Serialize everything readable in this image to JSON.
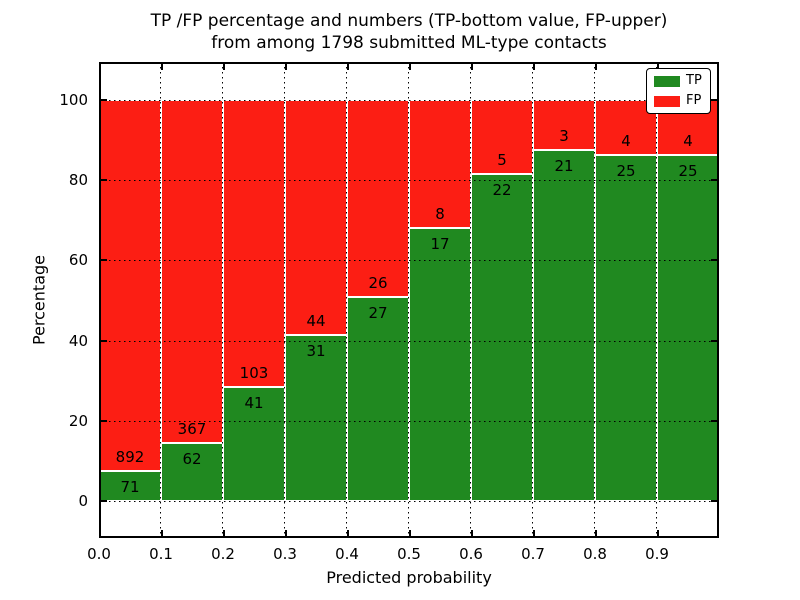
{
  "title": {
    "line1": "TP /FP percentage and numbers (TP-bottom value, FP-upper)",
    "line2": "from among 1798 submitted ML-type contacts"
  },
  "axes": {
    "xlabel": "Predicted probability",
    "ylabel": "Percentage",
    "xtick_labels": [
      "0.0",
      "0.1",
      "0.2",
      "0.3",
      "0.4",
      "0.5",
      "0.6",
      "0.7",
      "0.8",
      "0.9"
    ],
    "ytick_labels": [
      "0",
      "20",
      "40",
      "60",
      "80",
      "100"
    ]
  },
  "legend": {
    "position": "upper-right",
    "entries": [
      {
        "label": "TP",
        "color": "#208920"
      },
      {
        "label": "FP",
        "color": "#fc1e14"
      }
    ]
  },
  "colors": {
    "tp_green": "#208920",
    "fp_red": "#fc1e14",
    "grid": "#000000",
    "background": "#ffffff"
  },
  "chart_data": {
    "type": "bar",
    "stacked": true,
    "normalized": "each bin scaled to 100%",
    "title": "TP /FP percentage and numbers (TP-bottom value, FP-upper) from among 1798 submitted ML-type contacts",
    "xlabel": "Predicted probability",
    "ylabel": "Percentage",
    "total_contacts": 1798,
    "bin_width": 0.1,
    "bin_starts": [
      0.0,
      0.1,
      0.2,
      0.3,
      0.4,
      0.5,
      0.6,
      0.7,
      0.8,
      0.9
    ],
    "xlim": [
      0.0,
      1.0
    ],
    "ylim": [
      -9.5,
      109.5
    ],
    "yticks": [
      0,
      20,
      40,
      60,
      80,
      100
    ],
    "grid": true,
    "legend_position": "upper right",
    "series": [
      {
        "name": "TP",
        "color": "#208920",
        "values": [
          71,
          62,
          41,
          31,
          27,
          17,
          22,
          21,
          25,
          25
        ]
      },
      {
        "name": "FP",
        "color": "#fc1e14",
        "values": [
          892,
          367,
          103,
          44,
          26,
          8,
          5,
          3,
          4,
          4
        ]
      }
    ],
    "tp_percent_of_bin": [
      7.37,
      14.45,
      28.47,
      41.33,
      50.94,
      68.0,
      81.48,
      87.5,
      86.21,
      86.21
    ]
  }
}
